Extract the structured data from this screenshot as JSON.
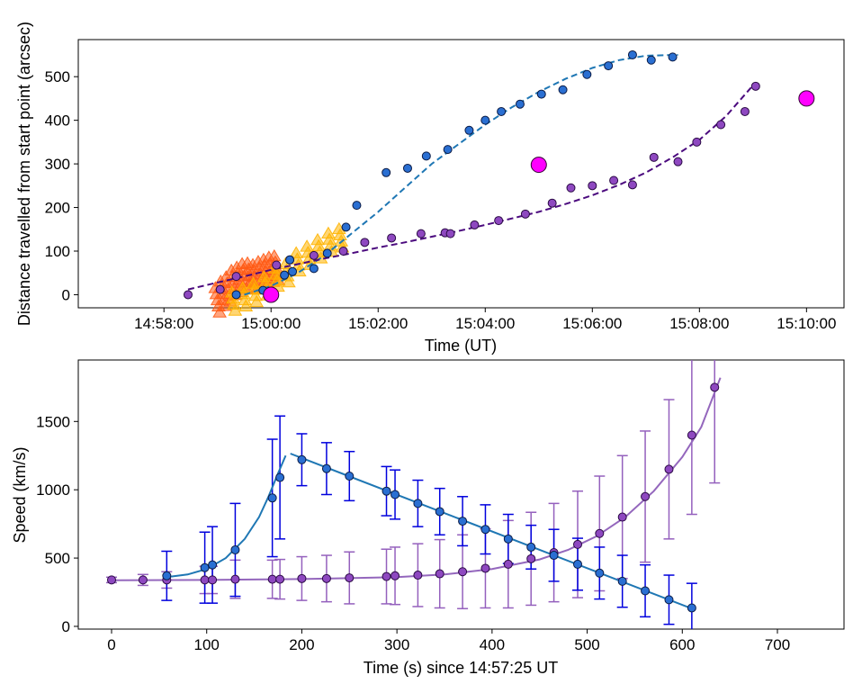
{
  "chart_data": [
    {
      "type": "scatter",
      "title": "",
      "xlabel": "Time (UT)",
      "ylabel": "Distance travelled from start point (arcsec)",
      "x_units": "minutes after 14:57:00",
      "xlim": [
        -0.6,
        13.7
      ],
      "ylim": [
        -30,
        585
      ],
      "xticks": [
        1,
        3,
        5,
        7,
        9,
        11,
        13
      ],
      "xtick_labels": [
        "14:58:00",
        "15:00:00",
        "15:02:00",
        "15:04:00",
        "15:06:00",
        "15:08:00",
        "15:10:00"
      ],
      "yticks": [
        0,
        100,
        200,
        300,
        400,
        500
      ],
      "ytick_labels": [
        "0",
        "100",
        "200",
        "300",
        "400",
        "500"
      ],
      "colors": {
        "blue_point": "#2a6fd2",
        "blue_fit": "#1f77b4",
        "purple_point": "#8e48c0",
        "purple_fit": "#4b0a7e",
        "magenta": "#ff00ff",
        "orange": "#ff5a14",
        "yellow": "#ffb400"
      },
      "series": [
        {
          "name": "blue points",
          "kind": "points",
          "x": [
            2.35,
            2.85,
            3.25,
            3.4,
            3.8,
            4.05,
            4.4,
            4.6,
            3.35,
            5.15,
            5.55,
            5.9,
            6.3,
            6.7,
            7.0,
            7.3,
            7.65,
            8.05,
            8.45,
            8.9,
            9.3,
            9.75,
            10.1,
            10.5
          ],
          "y": [
            0,
            10,
            45,
            53,
            60,
            95,
            155,
            205,
            80,
            280,
            290,
            318,
            333,
            377,
            400,
            420,
            437,
            460,
            470,
            505,
            525,
            550,
            538,
            545
          ]
        },
        {
          "name": "purple points",
          "kind": "points",
          "x": [
            1.45,
            2.05,
            2.35,
            3.1,
            3.35,
            3.8,
            4.35,
            4.75,
            5.25,
            5.8,
            6.25,
            6.35,
            6.8,
            7.25,
            7.75,
            8.25,
            8.6,
            9.0,
            9.4,
            9.75,
            10.15,
            10.6,
            10.95
          ],
          "y": [
            0,
            12,
            42,
            68,
            80,
            90,
            100,
            120,
            130,
            140,
            142,
            140,
            160,
            170,
            185,
            210,
            245,
            250,
            262,
            252,
            315,
            305,
            350
          ],
          "x_extra": [
            11.4,
            11.85,
            12.05
          ],
          "y_extra": [
            390,
            420,
            478
          ]
        },
        {
          "name": "blue fit",
          "kind": "dashed-line",
          "x": [
            2.5,
            3.0,
            3.5,
            4.0,
            4.5,
            5.0,
            5.5,
            6.0,
            6.5,
            7.0,
            7.5,
            8.0,
            8.5,
            9.0,
            9.5,
            10.0,
            10.6
          ],
          "y": [
            0,
            20,
            50,
            90,
            140,
            190,
            245,
            300,
            345,
            390,
            430,
            465,
            495,
            520,
            538,
            548,
            550
          ]
        },
        {
          "name": "purple fit",
          "kind": "dashed-line",
          "x": [
            1.45,
            2.0,
            2.5,
            3.0,
            3.5,
            4.0,
            4.5,
            5.0,
            5.5,
            6.0,
            6.5,
            7.0,
            7.5,
            8.0,
            8.5,
            9.0,
            9.5,
            10.0,
            10.5,
            11.0,
            11.5,
            12.0
          ],
          "y": [
            12,
            28,
            42,
            57,
            70,
            83,
            95,
            108,
            120,
            133,
            146,
            160,
            175,
            190,
            208,
            228,
            252,
            280,
            315,
            355,
            410,
            480
          ]
        },
        {
          "name": "magenta markers",
          "kind": "points",
          "x": [
            3.0,
            8.0,
            13.0
          ],
          "y": [
            0,
            298,
            450
          ]
        },
        {
          "name": "orange triangles",
          "kind": "triangles",
          "x": [
            2.0,
            2.1,
            2.2,
            2.3,
            2.4,
            2.5,
            2.6,
            2.7,
            2.8,
            2.9,
            3.0,
            3.1
          ],
          "y": [
            15,
            30,
            40,
            55,
            62,
            70,
            72,
            68,
            75,
            80,
            85,
            88
          ]
        },
        {
          "name": "yellow triangles",
          "kind": "triangles",
          "x": [
            2.3,
            2.5,
            2.7,
            2.9,
            3.1,
            3.3,
            3.5,
            3.7,
            3.9,
            4.1,
            4.3
          ],
          "y": [
            5,
            15,
            25,
            40,
            60,
            70,
            95,
            110,
            125,
            140,
            150
          ]
        }
      ]
    },
    {
      "type": "scatter",
      "title": "",
      "xlabel": "Time (s) since 14:57:25 UT",
      "ylabel": "Speed (km/s)",
      "xlim": [
        -35,
        770
      ],
      "ylim": [
        -20,
        1950
      ],
      "xticks": [
        0,
        100,
        200,
        300,
        400,
        500,
        600,
        700
      ],
      "xtick_labels": [
        "0",
        "100",
        "200",
        "300",
        "400",
        "500",
        "600",
        "700"
      ],
      "yticks": [
        0,
        500,
        1000,
        1500
      ],
      "ytick_labels": [
        "0",
        "500",
        "1000",
        "1500"
      ],
      "colors": {
        "blue_point": "#2a6fd2",
        "blue_err": "#0000dd",
        "blue_fit": "#1f77b4",
        "purple_point": "#8e48c0",
        "purple_err": "#9460bd",
        "purple_fit": "#9467bd"
      },
      "series": [
        {
          "name": "blue speeds",
          "kind": "points-with-error",
          "x": [
            58,
            98,
            106,
            130,
            169,
            177,
            200,
            226,
            250,
            289,
            298,
            322,
            345,
            369,
            393,
            417,
            441,
            465,
            490,
            513,
            537,
            561,
            586,
            610
          ],
          "y": [
            370,
            430,
            450,
            560,
            940,
            1090,
            1220,
            1155,
            1100,
            990,
            965,
            900,
            840,
            770,
            710,
            640,
            580,
            520,
            455,
            390,
            330,
            260,
            195,
            135
          ],
          "err": [
            180,
            260,
            280,
            340,
            430,
            450,
            190,
            190,
            180,
            180,
            180,
            170,
            170,
            180,
            180,
            180,
            160,
            190,
            190,
            190,
            190,
            190,
            180,
            180
          ]
        },
        {
          "name": "purple speeds",
          "kind": "points-with-error",
          "x": [
            0,
            33,
            58,
            98,
            106,
            130,
            169,
            177,
            200,
            226,
            250,
            289,
            298,
            322,
            345,
            369,
            393,
            417,
            441,
            465,
            490,
            513,
            537,
            561,
            586,
            610,
            634
          ],
          "y": [
            340,
            340,
            340,
            340,
            340,
            345,
            345,
            345,
            350,
            350,
            355,
            365,
            370,
            375,
            385,
            400,
            425,
            455,
            495,
            540,
            600,
            680,
            800,
            950,
            1150,
            1400,
            1750
          ],
          "err": [
            20,
            40,
            60,
            100,
            100,
            140,
            140,
            145,
            160,
            170,
            190,
            200,
            210,
            230,
            250,
            270,
            290,
            320,
            340,
            360,
            390,
            420,
            450,
            480,
            510,
            580,
            700
          ]
        },
        {
          "name": "blue fit",
          "kind": "line",
          "x": [
            58,
            80,
            100,
            120,
            140,
            155,
            165,
            175,
            183
          ],
          "y": [
            360,
            380,
            420,
            500,
            640,
            800,
            950,
            1120,
            1250
          ]
        },
        {
          "name": "blue linear fit",
          "kind": "line",
          "x": [
            188,
            612
          ],
          "y": [
            1265,
            125
          ]
        },
        {
          "name": "purple fit",
          "kind": "line",
          "x": [
            0,
            100,
            200,
            300,
            350,
            400,
            450,
            480,
            510,
            540,
            570,
            600,
            620,
            640
          ],
          "y": [
            338,
            340,
            346,
            360,
            380,
            420,
            490,
            560,
            660,
            800,
            990,
            1240,
            1460,
            1820
          ]
        }
      ]
    }
  ]
}
